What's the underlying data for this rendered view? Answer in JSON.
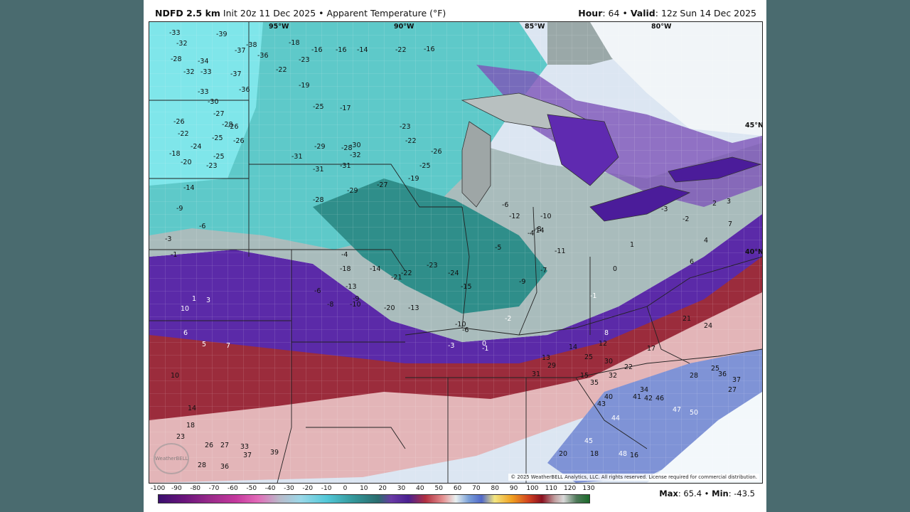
{
  "header": {
    "model": "NDFD 2.5 km",
    "init": "Init 20z 11 Dec 2025",
    "separator": "•",
    "variable": "Apparent Temperature (°F)",
    "hour_label": "Hour",
    "hour_value": ": 64",
    "valid_label": "Valid",
    "valid_value": ": 12z Sun 14 Dec 2025"
  },
  "map": {
    "longitude_labels": [
      "95°W",
      "90°W",
      "85°W",
      "80°W"
    ],
    "latitude_labels": [
      "45°N",
      "40°N"
    ],
    "watermark": "WeatherBELL",
    "copyright": "© 2025 WeatherBELL Analytics, LLC. All rights reserved. License required for commercial distribution.",
    "colors": {
      "extreme_cold": "#2aa3a8",
      "very_cold": "#6fe0e4",
      "cold": "#9cc7c6",
      "cool": "#b8c4c4",
      "near_zero": "#5f2ab0",
      "mild": "#8d2a35",
      "moderate": "#e3b5b8",
      "warm": "#c8d6ee",
      "warmer": "#7f93d6",
      "land_outside": "#eef4f7",
      "lakes_band": "#6b2fc0"
    },
    "labels": [
      {
        "t": "-33"
      },
      {
        "t": "-39"
      },
      {
        "t": "-38"
      },
      {
        "t": "-32"
      },
      {
        "t": "-37"
      },
      {
        "t": "-28"
      },
      {
        "t": "-34"
      },
      {
        "t": "-36"
      },
      {
        "t": "-32"
      },
      {
        "t": "-33"
      },
      {
        "t": "-37"
      },
      {
        "t": "-33"
      },
      {
        "t": "-36"
      },
      {
        "t": "-30"
      },
      {
        "t": "-27"
      },
      {
        "t": "-26"
      },
      {
        "t": "-28"
      },
      {
        "t": "-26"
      },
      {
        "t": "-22"
      },
      {
        "t": "-25"
      },
      {
        "t": "-26"
      },
      {
        "t": "-24"
      },
      {
        "t": "-25"
      },
      {
        "t": "-18"
      },
      {
        "t": "-20"
      },
      {
        "t": "-23"
      },
      {
        "t": "-14"
      },
      {
        "t": "-9"
      },
      {
        "t": "-6"
      },
      {
        "t": "-3"
      },
      {
        "t": "-1"
      },
      {
        "t": "1"
      },
      {
        "t": "3"
      },
      {
        "t": "10"
      },
      {
        "t": "6"
      },
      {
        "t": "5"
      },
      {
        "t": "7"
      },
      {
        "t": "10"
      },
      {
        "t": "14"
      },
      {
        "t": "18"
      },
      {
        "t": "23"
      },
      {
        "t": "26"
      },
      {
        "t": "27"
      },
      {
        "t": "28"
      },
      {
        "t": "33"
      },
      {
        "t": "37"
      },
      {
        "t": "36"
      },
      {
        "t": "39"
      },
      {
        "t": "-18"
      },
      {
        "t": "-16"
      },
      {
        "t": "-16"
      },
      {
        "t": "-14"
      },
      {
        "t": "-22"
      },
      {
        "t": "-16"
      },
      {
        "t": "-23"
      },
      {
        "t": "-22"
      },
      {
        "t": "-19"
      },
      {
        "t": "-25"
      },
      {
        "t": "-17"
      },
      {
        "t": "-31"
      },
      {
        "t": "-30"
      },
      {
        "t": "-29"
      },
      {
        "t": "-28"
      },
      {
        "t": "-32"
      },
      {
        "t": "-31"
      },
      {
        "t": "-31"
      },
      {
        "t": "-29"
      },
      {
        "t": "-28"
      },
      {
        "t": "-27"
      },
      {
        "t": "-23"
      },
      {
        "t": "-22"
      },
      {
        "t": "-26"
      },
      {
        "t": "-25"
      },
      {
        "t": "-19"
      },
      {
        "t": "-14"
      },
      {
        "t": "-18"
      },
      {
        "t": "-13"
      },
      {
        "t": "-10"
      },
      {
        "t": "-8"
      },
      {
        "t": "-4"
      },
      {
        "t": "-6"
      },
      {
        "t": "-9"
      },
      {
        "t": "-21"
      },
      {
        "t": "-22"
      },
      {
        "t": "-23"
      },
      {
        "t": "-24"
      },
      {
        "t": "-20"
      },
      {
        "t": "-13"
      },
      {
        "t": "-15"
      },
      {
        "t": "-10"
      },
      {
        "t": "-6"
      },
      {
        "t": "-3"
      },
      {
        "t": "0"
      },
      {
        "t": "-2"
      },
      {
        "t": "-1"
      },
      {
        "t": "-6"
      },
      {
        "t": "-5"
      },
      {
        "t": "-4"
      },
      {
        "t": "-8"
      },
      {
        "t": "-12"
      },
      {
        "t": "-14"
      },
      {
        "t": "-10"
      },
      {
        "t": "-11"
      },
      {
        "t": "-9"
      },
      {
        "t": "-7"
      },
      {
        "t": "-1"
      },
      {
        "t": "0"
      },
      {
        "t": "1"
      },
      {
        "t": "-3"
      },
      {
        "t": "-2"
      },
      {
        "t": "4"
      },
      {
        "t": "6"
      },
      {
        "t": "7"
      },
      {
        "t": "2"
      },
      {
        "t": "3"
      },
      {
        "t": "8"
      },
      {
        "t": "12"
      },
      {
        "t": "14"
      },
      {
        "t": "15"
      },
      {
        "t": "17"
      },
      {
        "t": "21"
      },
      {
        "t": "24"
      },
      {
        "t": "25"
      },
      {
        "t": "27"
      },
      {
        "t": "28"
      },
      {
        "t": "30"
      },
      {
        "t": "32"
      },
      {
        "t": "34"
      },
      {
        "t": "36"
      },
      {
        "t": "37"
      },
      {
        "t": "40"
      },
      {
        "t": "41"
      },
      {
        "t": "42"
      },
      {
        "t": "46"
      },
      {
        "t": "47"
      },
      {
        "t": "50"
      },
      {
        "t": "35"
      },
      {
        "t": "43"
      },
      {
        "t": "44"
      },
      {
        "t": "48"
      },
      {
        "t": "45"
      },
      {
        "t": "16"
      },
      {
        "t": "18"
      },
      {
        "t": "20"
      },
      {
        "t": "22"
      },
      {
        "t": "25"
      },
      {
        "t": "29"
      },
      {
        "t": "31"
      },
      {
        "t": "13"
      }
    ]
  },
  "colorbar": {
    "ticks": [
      "-100",
      "-90",
      "-80",
      "-70",
      "-60",
      "-50",
      "-40",
      "-30",
      "-20",
      "-10",
      "0",
      "10",
      "20",
      "30",
      "40",
      "50",
      "60",
      "70",
      "80",
      "90",
      "100",
      "110",
      "120",
      "130"
    ]
  },
  "stats": {
    "max_label": "Max",
    "max_value": ": 65.4",
    "separator": "•",
    "min_label": "Min",
    "min_value": ": -43.5"
  }
}
